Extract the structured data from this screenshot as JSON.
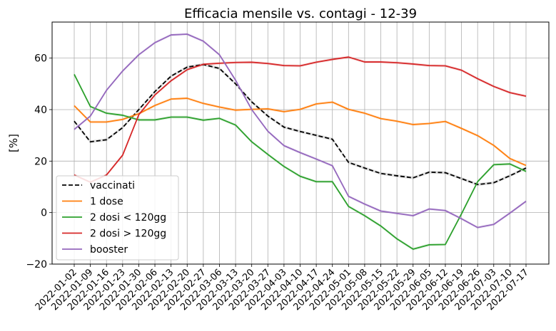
{
  "chart_data": {
    "type": "line",
    "title": "Efficacia mensile vs. contagi - 12-39",
    "xlabel": "",
    "ylabel": "[%]",
    "ylim": [
      -20,
      74
    ],
    "yticks": [
      -20,
      0,
      20,
      40,
      60
    ],
    "grid": true,
    "legend_position": "lower-left",
    "x": [
      "2022-01-02",
      "2022-01-09",
      "2022-01-16",
      "2022-01-23",
      "2022-01-30",
      "2022-02-06",
      "2022-02-13",
      "2022-02-20",
      "2022-02-27",
      "2022-03-06",
      "2022-03-13",
      "2022-03-20",
      "2022-03-27",
      "2022-04-03",
      "2022-04-10",
      "2022-04-17",
      "2022-04-24",
      "2022-05-01",
      "2022-05-08",
      "2022-05-15",
      "2022-05-22",
      "2022-05-29",
      "2022-06-05",
      "2022-06-12",
      "2022-06-19",
      "2022-06-26",
      "2022-07-03",
      "2022-07-10",
      "2022-07-17"
    ],
    "series": [
      {
        "name": "vaccinati",
        "color": "#000000",
        "dash": true,
        "values": [
          35.5,
          27.5,
          28.3,
          33,
          40,
          47,
          53,
          56.5,
          57.5,
          56,
          50,
          43,
          37.5,
          33.2,
          31.5,
          30,
          28.5,
          19.5,
          17.3,
          15.2,
          14.3,
          13.5,
          15.7,
          15.5,
          13.2,
          10.9,
          11.6,
          14.3,
          17.3
        ]
      },
      {
        "name": "1 dose",
        "color": "#ff7f0e",
        "dash": false,
        "values": [
          41.5,
          35.2,
          35.2,
          36.2,
          38.4,
          41.6,
          44.1,
          44.4,
          42.4,
          41,
          39.8,
          40.1,
          40.3,
          39.2,
          40.1,
          42.2,
          42.9,
          40.1,
          38.6,
          36.5,
          35.5,
          34.2,
          34.6,
          35.4,
          32.7,
          29.9,
          26.1,
          21,
          18.3
        ]
      },
      {
        "name": "2 dosi < 120gg",
        "color": "#2ca02c",
        "dash": false,
        "values": [
          53.7,
          41.2,
          38.6,
          37.8,
          36,
          36,
          37.1,
          37.1,
          35.9,
          36.6,
          34,
          27.5,
          22.6,
          17.9,
          14.1,
          12,
          12,
          2.4,
          -1.2,
          -5.2,
          -10.2,
          -14.2,
          -12.5,
          -12.4,
          -0.5,
          12,
          18.6,
          18.9,
          16
        ]
      },
      {
        "name": "2 dosi > 120gg",
        "color": "#d62728",
        "dash": false,
        "values": [
          14.6,
          11.8,
          14.6,
          22.3,
          38,
          45.7,
          51.2,
          55.5,
          57.6,
          58,
          58.3,
          58.4,
          57.9,
          57.1,
          57,
          58.4,
          59.5,
          60.4,
          58.5,
          58.5,
          58.2,
          57.7,
          57.1,
          57,
          55.3,
          52,
          49,
          46.6,
          45.2
        ]
      },
      {
        "name": "booster",
        "color": "#9467bd",
        "dash": false,
        "values": [
          32.3,
          37.5,
          47.5,
          55,
          61.3,
          66,
          69,
          69.3,
          66.6,
          61.3,
          51.4,
          40,
          31.6,
          26,
          23.3,
          20.8,
          18.2,
          6.3,
          3.3,
          0.6,
          -0.3,
          -1.2,
          1.4,
          0.8,
          -2.4,
          -5.8,
          -4.6,
          -0.2,
          4.4
        ]
      }
    ]
  }
}
